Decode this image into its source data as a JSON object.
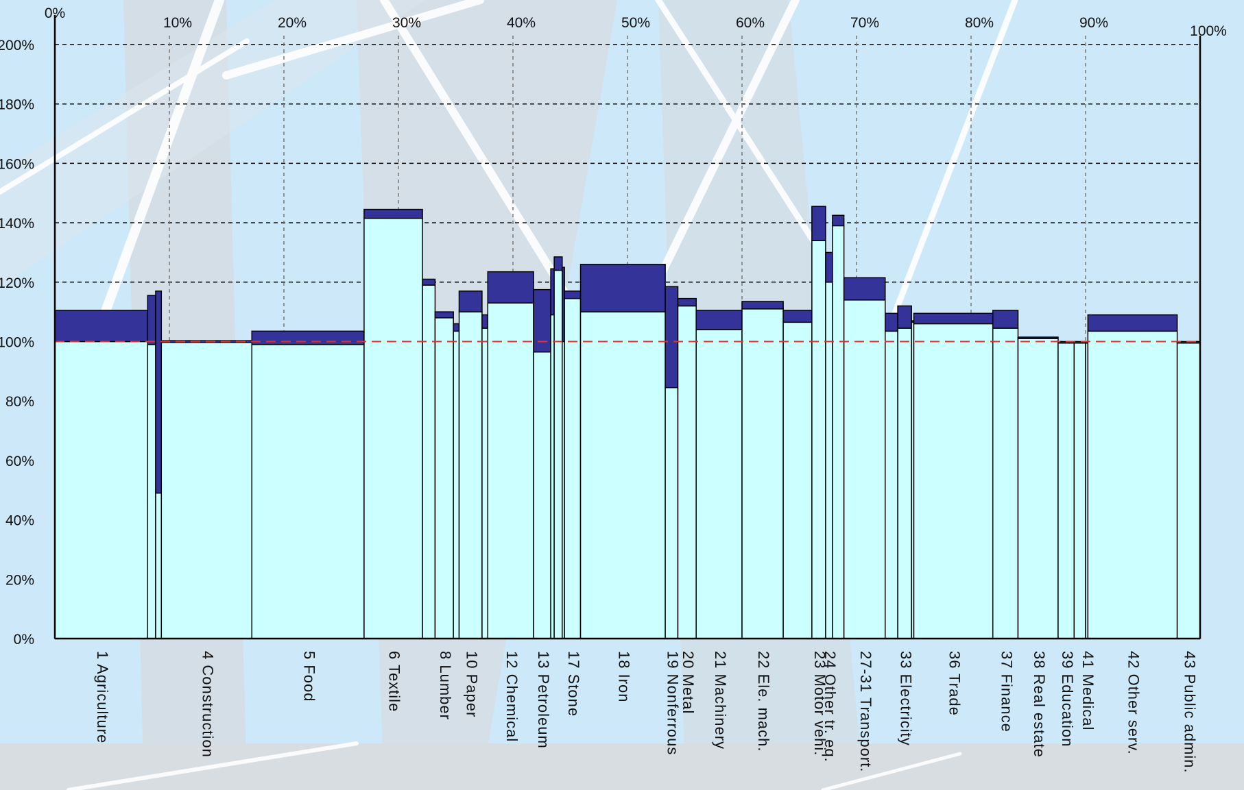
{
  "chart_data": {
    "type": "bar",
    "subtype": "variable-width stacked bars",
    "title": "",
    "xlabel": "",
    "ylabel": "",
    "ylim": [
      0,
      200
    ],
    "xlim": [
      0,
      100
    ],
    "y_ticks": [
      "0%",
      "20%",
      "40%",
      "60%",
      "80%",
      "100%",
      "120%",
      "140%",
      "160%",
      "180%",
      "200%"
    ],
    "x_ticks": [
      "0%",
      "10%",
      "20%",
      "30%",
      "40%",
      "50%",
      "60%",
      "70%",
      "80%",
      "90%",
      "100%"
    ],
    "grid": true,
    "reference_line": {
      "y": 100,
      "color": "#e03030",
      "style": "dashed"
    },
    "colors": {
      "base": "#ccffff",
      "delta": "#333399",
      "outline": "#000000",
      "background": "#cde8f8"
    },
    "series": [
      {
        "role": "lower (light cyan)"
      },
      {
        "role": "upper (dark blue)"
      }
    ],
    "bars": [
      {
        "label": "1 Agriculture",
        "x0": 0.0,
        "x1": 8.1,
        "lower": 100.0,
        "upper": 110.5
      },
      {
        "label": "",
        "x0": 8.1,
        "x1": 8.8,
        "lower": 99.0,
        "upper": 115.5
      },
      {
        "label": "",
        "x0": 8.8,
        "x1": 9.3,
        "lower": 49.0,
        "upper": 117.0
      },
      {
        "label": "4 Construction",
        "x0": 9.3,
        "x1": 17.2,
        "lower": 99.7,
        "upper": 100.3
      },
      {
        "label": "5 Food",
        "x0": 17.2,
        "x1": 27.0,
        "lower": 99.0,
        "upper": 103.5
      },
      {
        "label": "6 Textile",
        "x0": 27.0,
        "x1": 32.1,
        "lower": 141.5,
        "upper": 144.5
      },
      {
        "label": "",
        "x0": 32.1,
        "x1": 33.2,
        "lower": 119.0,
        "upper": 121.0
      },
      {
        "label": "8 Lumber",
        "x0": 33.2,
        "x1": 34.8,
        "lower": 108.0,
        "upper": 110.0
      },
      {
        "label": "",
        "x0": 34.8,
        "x1": 35.3,
        "lower": 103.5,
        "upper": 106.0
      },
      {
        "label": "10 Paper",
        "x0": 35.3,
        "x1": 37.3,
        "lower": 110.0,
        "upper": 117.0
      },
      {
        "label": "",
        "x0": 37.3,
        "x1": 37.8,
        "lower": 104.5,
        "upper": 109.0
      },
      {
        "label": "12 Chemical",
        "x0": 37.8,
        "x1": 41.8,
        "lower": 113.0,
        "upper": 123.5
      },
      {
        "label": "13 Petroleum",
        "x0": 41.8,
        "x1": 43.3,
        "lower": 96.5,
        "upper": 117.5
      },
      {
        "label": "",
        "x0": 43.3,
        "x1": 43.6,
        "lower": 109.0,
        "upper": 124.5
      },
      {
        "label": "",
        "x0": 43.6,
        "x1": 44.3,
        "lower": 124.0,
        "upper": 128.5
      },
      {
        "label": "",
        "x0": 44.3,
        "x1": 44.5,
        "lower": 100.0,
        "upper": 125.0
      },
      {
        "label": "17 Stone",
        "x0": 44.5,
        "x1": 45.9,
        "lower": 114.5,
        "upper": 117.0
      },
      {
        "label": "18 Iron",
        "x0": 45.9,
        "x1": 53.3,
        "lower": 110.0,
        "upper": 126.0
      },
      {
        "label": "19 Nonferrous",
        "x0": 53.3,
        "x1": 54.4,
        "lower": 84.5,
        "upper": 118.5
      },
      {
        "label": "20 Metal",
        "x0": 54.4,
        "x1": 56.0,
        "lower": 112.0,
        "upper": 114.5
      },
      {
        "label": "21 Machinery",
        "x0": 56.0,
        "x1": 60.0,
        "lower": 104.0,
        "upper": 110.5
      },
      {
        "label": "22 Ele. mach.",
        "x0": 60.0,
        "x1": 63.6,
        "lower": 111.0,
        "upper": 113.5
      },
      {
        "label": "",
        "x0": 63.6,
        "x1": 66.1,
        "lower": 106.5,
        "upper": 110.5
      },
      {
        "label": "23 Motor vehi.",
        "x0": 66.1,
        "x1": 67.3,
        "lower": 134.0,
        "upper": 145.5
      },
      {
        "label": "24 Other tr. eq.",
        "x0": 67.3,
        "x1": 67.9,
        "lower": 120.0,
        "upper": 130.0
      },
      {
        "label": "",
        "x0": 67.9,
        "x1": 68.9,
        "lower": 139.0,
        "upper": 142.5
      },
      {
        "label": "27-31 Transport.",
        "x0": 68.9,
        "x1": 72.5,
        "lower": 114.0,
        "upper": 121.5
      },
      {
        "label": "",
        "x0": 72.5,
        "x1": 73.6,
        "lower": 103.5,
        "upper": 109.5
      },
      {
        "label": "33 Electricity",
        "x0": 73.6,
        "x1": 74.8,
        "lower": 104.5,
        "upper": 112.0
      },
      {
        "label": "",
        "x0": 74.8,
        "x1": 75.0,
        "lower": 106.5,
        "upper": 107.0
      },
      {
        "label": "36 Trade",
        "x0": 75.0,
        "x1": 81.9,
        "lower": 106.0,
        "upper": 109.5
      },
      {
        "label": "37 Finance",
        "x0": 81.9,
        "x1": 84.1,
        "lower": 104.5,
        "upper": 110.5
      },
      {
        "label": "38 Real estate",
        "x0": 84.1,
        "x1": 87.6,
        "lower": 101.0,
        "upper": 101.5
      },
      {
        "label": "39 Education",
        "x0": 87.6,
        "x1": 89.0,
        "lower": 99.5,
        "upper": 100.0
      },
      {
        "label": "",
        "x0": 89.0,
        "x1": 90.0,
        "lower": 99.5,
        "upper": 100.0
      },
      {
        "label": "41 Medical",
        "x0": 90.0,
        "x1": 90.2,
        "lower": 99.5,
        "upper": 100.0
      },
      {
        "label": "42 Other serv.",
        "x0": 90.2,
        "x1": 98.0,
        "lower": 103.5,
        "upper": 109.0
      },
      {
        "label": "43 Public admin.",
        "x0": 98.0,
        "x1": 100.0,
        "lower": 99.5,
        "upper": 100.0
      }
    ]
  }
}
